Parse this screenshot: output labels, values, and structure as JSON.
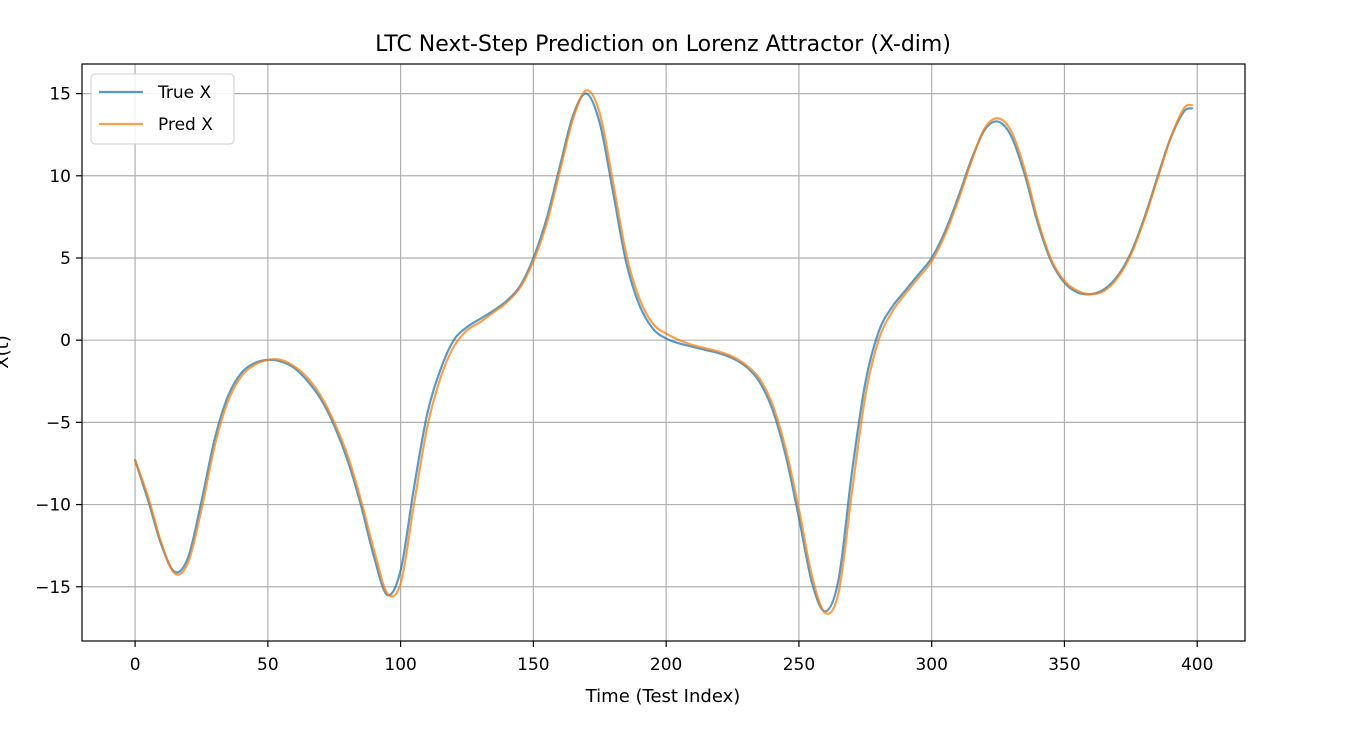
{
  "chart_data": {
    "type": "line",
    "title": "LTC Next-Step Prediction on Lorenz Attractor (X-dim)",
    "xlabel": "Time (Test Index)",
    "ylabel": "X(t)",
    "xlim": [
      -20,
      418
    ],
    "ylim": [
      -18.3,
      16.8
    ],
    "xticks": [
      0,
      50,
      100,
      150,
      200,
      250,
      300,
      350,
      400
    ],
    "yticks": [
      -15,
      -10,
      -5,
      0,
      5,
      10,
      15
    ],
    "grid": true,
    "legend_position": "top-left",
    "series": [
      {
        "name": "True X",
        "color": "#1f77b4",
        "x": [
          0,
          5,
          10,
          15,
          20,
          25,
          30,
          35,
          40,
          45,
          50,
          55,
          60,
          65,
          70,
          75,
          80,
          85,
          90,
          95,
          100,
          105,
          110,
          115,
          120,
          125,
          130,
          135,
          140,
          145,
          150,
          155,
          160,
          165,
          170,
          175,
          180,
          185,
          190,
          195,
          200,
          205,
          210,
          215,
          220,
          225,
          230,
          235,
          240,
          245,
          250,
          255,
          260,
          265,
          270,
          275,
          280,
          285,
          290,
          295,
          300,
          305,
          310,
          315,
          320,
          325,
          330,
          335,
          340,
          345,
          350,
          355,
          360,
          365,
          370,
          375,
          380,
          385,
          390,
          395,
          398
        ],
        "values": [
          -7.3,
          -9.8,
          -12.5,
          -14.1,
          -13.2,
          -9.8,
          -6.0,
          -3.4,
          -2.0,
          -1.4,
          -1.2,
          -1.3,
          -1.7,
          -2.5,
          -3.6,
          -5.2,
          -7.3,
          -10.0,
          -13.2,
          -15.5,
          -14.0,
          -9.0,
          -4.5,
          -1.8,
          0.0,
          0.8,
          1.3,
          1.8,
          2.4,
          3.3,
          5.0,
          7.4,
          10.6,
          13.7,
          15.0,
          13.2,
          9.0,
          4.7,
          2.1,
          0.7,
          0.1,
          -0.2,
          -0.4,
          -0.6,
          -0.8,
          -1.1,
          -1.6,
          -2.5,
          -4.2,
          -7.0,
          -10.8,
          -14.8,
          -16.5,
          -14.5,
          -8.0,
          -2.6,
          0.5,
          2.0,
          3.0,
          4.0,
          5.0,
          6.6,
          8.7,
          11.0,
          12.8,
          13.3,
          12.4,
          10.1,
          7.1,
          4.8,
          3.5,
          2.9,
          2.8,
          3.1,
          3.9,
          5.3,
          7.4,
          9.9,
          12.3,
          13.9,
          14.1
        ]
      },
      {
        "name": "Pred X",
        "color": "#ff7f0e",
        "x": [
          0,
          5,
          10,
          15,
          20,
          25,
          30,
          35,
          40,
          45,
          50,
          55,
          60,
          65,
          70,
          75,
          80,
          85,
          90,
          95,
          100,
          105,
          110,
          115,
          120,
          125,
          130,
          135,
          140,
          145,
          150,
          155,
          160,
          165,
          170,
          175,
          180,
          185,
          190,
          195,
          200,
          205,
          210,
          215,
          220,
          225,
          230,
          235,
          240,
          245,
          250,
          255,
          260,
          265,
          270,
          275,
          280,
          285,
          290,
          295,
          300,
          305,
          310,
          315,
          320,
          325,
          330,
          335,
          340,
          345,
          350,
          355,
          360,
          365,
          370,
          375,
          380,
          385,
          390,
          395,
          398
        ],
        "values": [
          -7.3,
          -9.6,
          -12.4,
          -14.2,
          -13.5,
          -10.3,
          -6.4,
          -3.7,
          -2.2,
          -1.5,
          -1.2,
          -1.2,
          -1.6,
          -2.3,
          -3.4,
          -5.0,
          -7.0,
          -9.7,
          -12.8,
          -15.4,
          -14.8,
          -10.0,
          -5.3,
          -2.3,
          -0.4,
          0.6,
          1.1,
          1.7,
          2.3,
          3.2,
          4.8,
          7.1,
          10.3,
          13.5,
          15.2,
          13.8,
          9.6,
          5.2,
          2.5,
          1.0,
          0.4,
          0.0,
          -0.3,
          -0.5,
          -0.7,
          -1.0,
          -1.5,
          -2.3,
          -3.9,
          -6.6,
          -10.3,
          -14.4,
          -16.6,
          -15.3,
          -9.2,
          -3.4,
          0.0,
          1.7,
          2.8,
          3.8,
          4.8,
          6.4,
          8.5,
          10.9,
          12.9,
          13.5,
          12.7,
          10.4,
          7.3,
          4.9,
          3.6,
          3.0,
          2.8,
          3.0,
          3.8,
          5.2,
          7.3,
          9.8,
          12.3,
          14.1,
          14.3
        ]
      }
    ]
  }
}
